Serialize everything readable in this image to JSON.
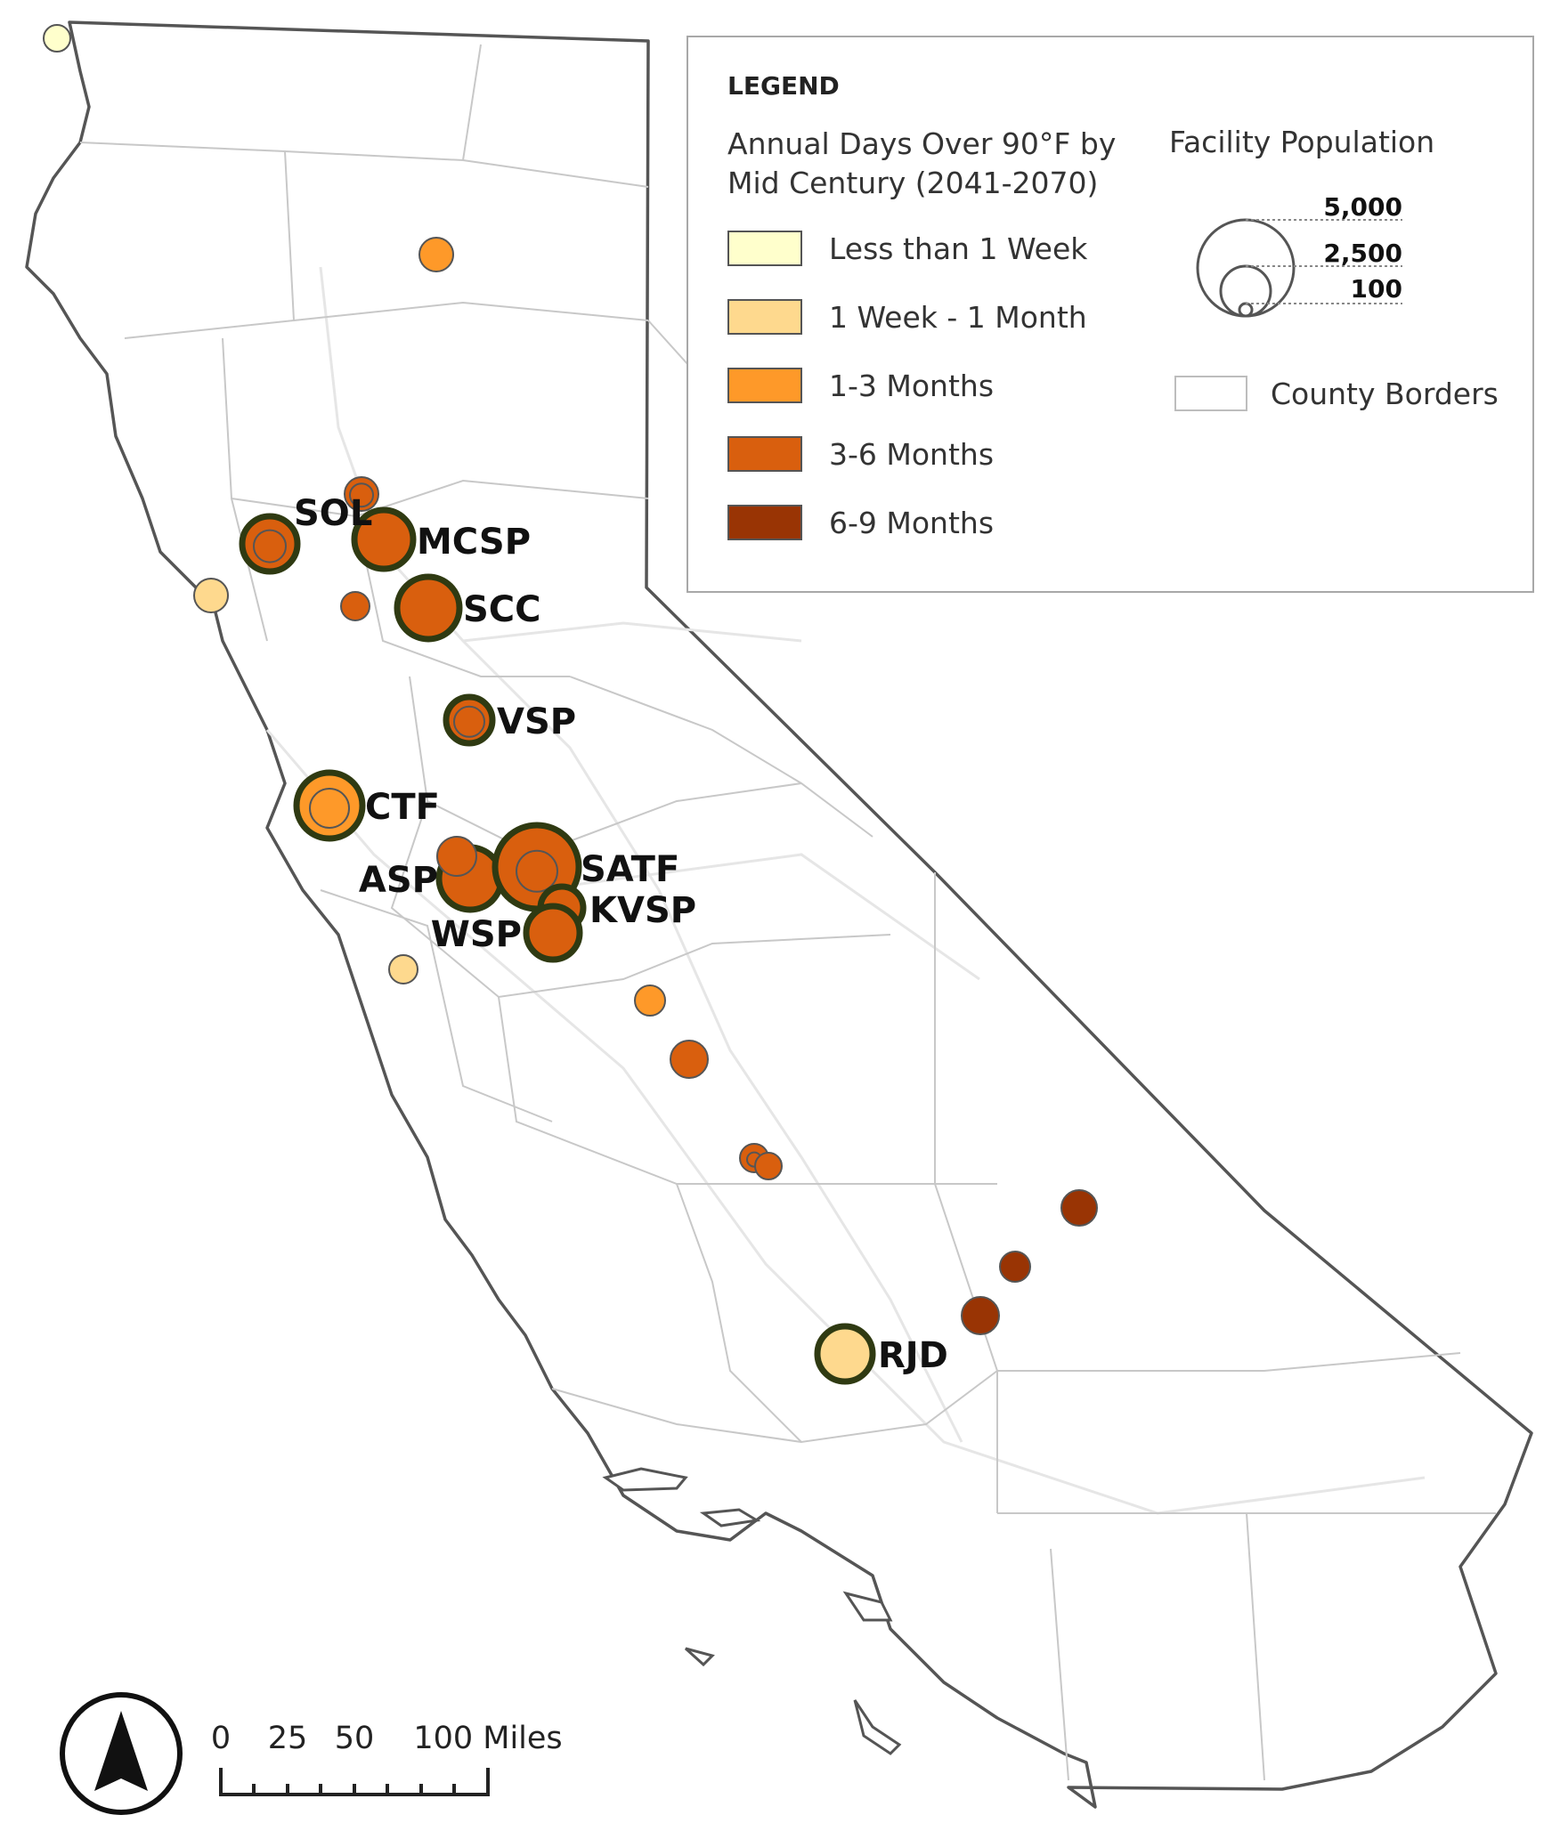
{
  "legend": {
    "title": "LEGEND",
    "heat_title": "Annual Days Over 90°F by Mid Century (2041-2070)",
    "heat_classes": [
      {
        "label": "Less than 1 Week",
        "color": "#ffffcc"
      },
      {
        "label": "1 Week - 1 Month",
        "color": "#fed98e"
      },
      {
        "label": "1-3 Months",
        "color": "#fe9929"
      },
      {
        "label": "3-6 Months",
        "color": "#d95f0e"
      },
      {
        "label": "6-9 Months",
        "color": "#993404"
      }
    ],
    "population_title": "Facility Population",
    "population_values": [
      "5,000",
      "2,500",
      "100"
    ],
    "county_label": "County Borders"
  },
  "facilities": [
    {
      "label": "SOL",
      "class": 3,
      "highlight": true
    },
    {
      "label": "MCSP",
      "class": 3,
      "highlight": true
    },
    {
      "label": "SCC",
      "class": 3,
      "highlight": true
    },
    {
      "label": "VSP",
      "class": 3,
      "highlight": true
    },
    {
      "label": "CTF",
      "class": 2,
      "highlight": true
    },
    {
      "label": "ASP",
      "class": 3,
      "highlight": true
    },
    {
      "label": "SATF",
      "class": 3,
      "highlight": true
    },
    {
      "label": "KVSP",
      "class": 3,
      "highlight": true
    },
    {
      "label": "WSP",
      "class": 3,
      "highlight": true
    },
    {
      "label": "RJD",
      "class": 1,
      "highlight": true
    },
    {
      "label": "",
      "class": 0
    },
    {
      "label": "",
      "class": 2
    },
    {
      "label": "",
      "class": 3
    },
    {
      "label": "",
      "class": 1
    },
    {
      "label": "",
      "class": 3
    },
    {
      "label": "",
      "class": 3
    },
    {
      "label": "",
      "class": 1
    },
    {
      "label": "",
      "class": 2
    },
    {
      "label": "",
      "class": 3
    },
    {
      "label": "",
      "class": 3
    },
    {
      "label": "",
      "class": 3
    },
    {
      "label": "",
      "class": 4
    },
    {
      "label": "",
      "class": 4
    },
    {
      "label": "",
      "class": 4
    }
  ],
  "scale": {
    "ticks": [
      "0",
      "25",
      "50",
      "100 Miles"
    ]
  },
  "icons": {
    "north_arrow": "north-arrow-icon"
  }
}
